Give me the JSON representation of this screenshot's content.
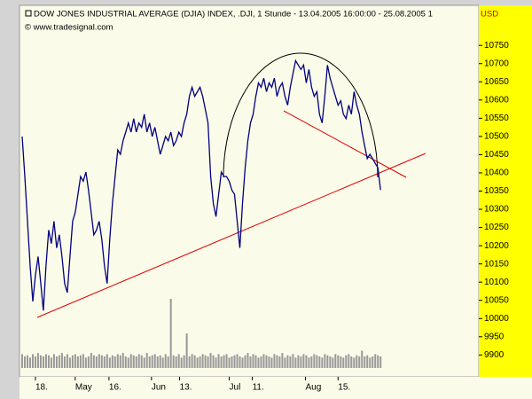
{
  "chart_data": {
    "type": "line",
    "title": "DOW JONES INDUSTRIAL AVERAGE (DJIA) INDEX, .DJI, 1 Stunde - 13.04.2005 16:00:00 - 25.08.2005 1",
    "currency": "USD",
    "source": "© www.tradesignal.com",
    "series": [
      {
        "name": "DJIA",
        "color": "#000080",
        "values": [
          10500,
          10390,
          10267,
          10145,
          10047,
          10120,
          10170,
          10096,
          10022,
          10145,
          10243,
          10206,
          10267,
          10194,
          10230,
          10170,
          10096,
          10071,
          10170,
          10267,
          10292,
          10341,
          10390,
          10377,
          10402,
          10353,
          10292,
          10230,
          10243,
          10267,
          10218,
          10145,
          10096,
          10218,
          10316,
          10390,
          10463,
          10451,
          10488,
          10512,
          10537,
          10512,
          10549,
          10512,
          10537,
          10525,
          10561,
          10512,
          10537,
          10500,
          10525,
          10488,
          10451,
          10475,
          10500,
          10488,
          10512,
          10475,
          10488,
          10512,
          10500,
          10537,
          10561,
          10610,
          10635,
          10610,
          10623,
          10635,
          10610,
          10574,
          10537,
          10390,
          10316,
          10280,
          10341,
          10402,
          10390,
          10390,
          10377,
          10353,
          10341,
          10267,
          10194,
          10316,
          10414,
          10488,
          10537,
          10561,
          10610,
          10647,
          10635,
          10660,
          10623,
          10647,
          10635,
          10660,
          10610,
          10635,
          10647,
          10610,
          10586,
          10635,
          10672,
          10708,
          10696,
          10684,
          10696,
          10647,
          10684,
          10635,
          10610,
          10623,
          10561,
          10537,
          10610,
          10696,
          10660,
          10635,
          10610,
          10586,
          10598,
          10561,
          10549,
          10586,
          10561,
          10623,
          10586,
          10561,
          10512,
          10475,
          10439,
          10451,
          10439,
          10426,
          10414,
          10353
        ]
      }
    ],
    "volume": {
      "color": "#999999",
      "values": [
        12,
        10,
        11,
        9,
        12,
        10,
        13,
        11,
        10,
        12,
        11,
        9,
        12,
        10,
        11,
        13,
        10,
        12,
        9,
        11,
        12,
        10,
        11,
        12,
        9,
        10,
        13,
        11,
        10,
        12,
        11,
        10,
        12,
        9,
        11,
        10,
        12,
        11,
        13,
        10,
        9,
        12,
        11,
        10,
        12,
        11,
        9,
        13,
        10,
        11,
        12,
        10,
        11,
        9,
        12,
        10,
        60,
        11,
        10,
        12,
        9,
        11,
        30,
        10,
        12,
        11,
        9,
        10,
        12,
        11,
        10,
        13,
        11,
        9,
        12,
        10,
        11,
        12,
        9,
        10,
        11,
        12,
        10,
        9,
        11,
        13,
        10,
        12,
        11,
        9,
        10,
        12,
        11,
        10,
        9,
        12,
        11,
        10,
        13,
        9,
        11,
        10,
        12,
        9,
        11,
        10,
        12,
        11,
        9,
        10,
        12,
        11,
        10,
        9,
        12,
        11,
        10,
        9,
        12,
        11,
        10,
        9,
        11,
        12,
        10,
        9,
        11,
        10,
        15,
        10,
        11,
        9,
        10,
        12,
        11,
        10
      ]
    },
    "xlim": [
      -1,
      172
    ],
    "xticks": [
      {
        "value": 5,
        "label": "18."
      },
      {
        "value": 20,
        "label": "May"
      },
      {
        "value": 32.7,
        "label": "16."
      },
      {
        "value": 48.7,
        "label": "Jun"
      },
      {
        "value": 59.3,
        "label": "13."
      },
      {
        "value": 78,
        "label": "Jul"
      },
      {
        "value": 86.7,
        "label": "11."
      },
      {
        "value": 106.7,
        "label": "Aug"
      },
      {
        "value": 119,
        "label": "15."
      }
    ],
    "ylim": [
      9840,
      10860
    ],
    "yticks": [
      9900,
      9950,
      10000,
      10050,
      10100,
      10150,
      10200,
      10250,
      10300,
      10350,
      10400,
      10450,
      10500,
      10550,
      10600,
      10650,
      10700,
      10750
    ]
  }
}
